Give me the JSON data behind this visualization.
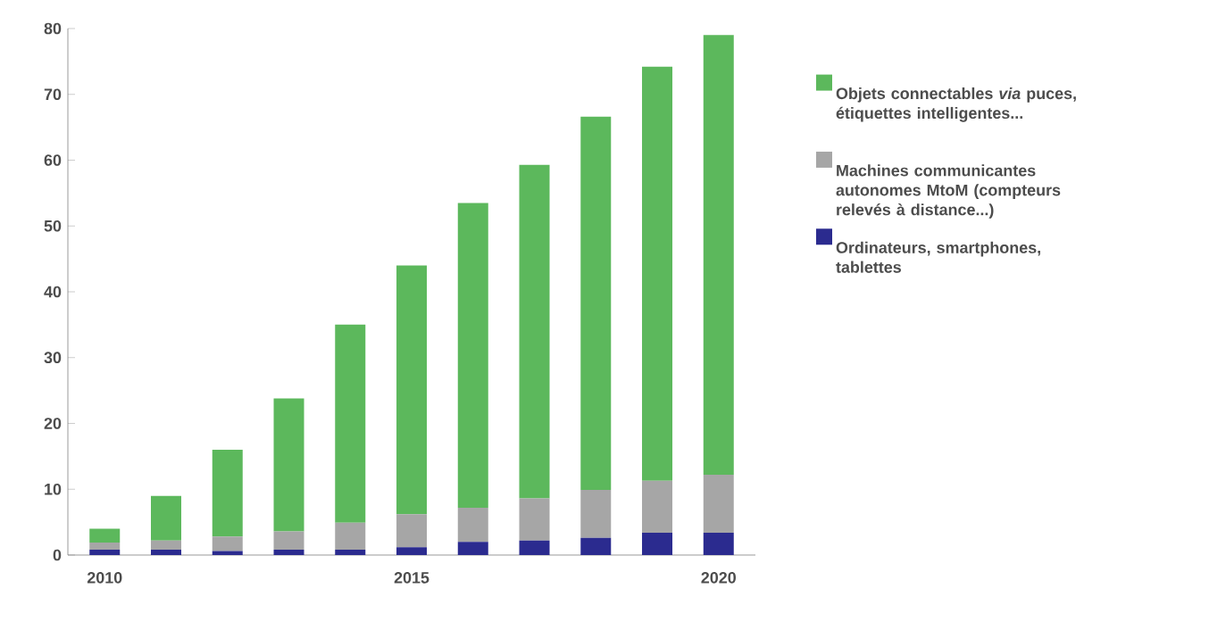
{
  "chart_data": {
    "type": "bar",
    "stacked": true,
    "categories": [
      "2010",
      null,
      null,
      null,
      null,
      "2015",
      null,
      null,
      null,
      null,
      "2020"
    ],
    "series": [
      {
        "name": "Ordinateurs, smartphones, tablettes",
        "color": "#2b2b8f",
        "values": [
          0.8,
          0.8,
          0.6,
          0.8,
          0.8,
          1.2,
          2.0,
          2.2,
          2.6,
          3.4,
          3.4
        ]
      },
      {
        "name": "Machines communicantes autonomes MtoM (compteurs relevés à distance...)",
        "color": "#a6a6a6",
        "values": [
          1.1,
          1.4,
          2.2,
          2.8,
          4.1,
          5.0,
          5.2,
          6.4,
          7.3,
          7.9,
          8.8
        ]
      },
      {
        "name": "Objets connectables *via* puces, étiquettes intelligentes...",
        "color": "#5cb85c",
        "values": [
          2.1,
          6.8,
          13.2,
          20.2,
          30.1,
          37.8,
          46.3,
          50.7,
          56.7,
          62.9,
          66.8
        ]
      }
    ],
    "ylim": [
      0,
      80
    ],
    "yticks": [
      0,
      10,
      20,
      30,
      40,
      50,
      60,
      70,
      80
    ],
    "grid": false,
    "legend": "right"
  }
}
